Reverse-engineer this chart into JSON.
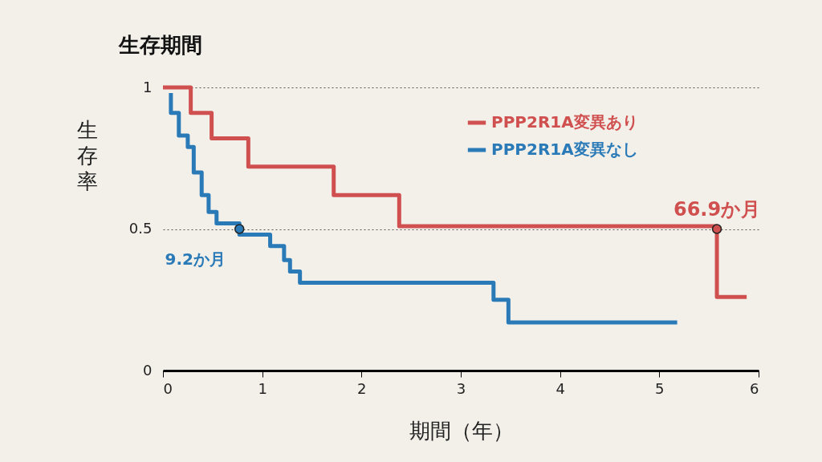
{
  "chart_data": {
    "type": "step",
    "title": "生存期間",
    "xlabel": "期間（年）",
    "ylabel": "生存率",
    "series": [
      {
        "name": "PPP2R1A変異あり",
        "color": "#d05050",
        "x": [
          0,
          0.28,
          0.49,
          0.86,
          1.72,
          2.38,
          5.58,
          5.88
        ],
        "values": [
          1,
          0.91,
          0.82,
          0.72,
          0.62,
          0.51,
          0.26,
          0.26
        ]
      },
      {
        "name": "PPP2R1A変異なし",
        "color": "#2a7ab8",
        "x": [
          0.08,
          0.08,
          0.16,
          0.25,
          0.31,
          0.39,
          0.46,
          0.54,
          0.77,
          1.08,
          1.22,
          1.28,
          1.38,
          3.33,
          3.48,
          5.18
        ],
        "values": [
          0.98,
          0.91,
          0.83,
          0.79,
          0.7,
          0.62,
          0.56,
          0.52,
          0.48,
          0.44,
          0.39,
          0.35,
          0.31,
          0.25,
          0.17,
          0.17
        ]
      }
    ],
    "annotations": [
      {
        "text": "66.9か月",
        "x": 5.58,
        "y": 0.5
      },
      {
        "text": "9.2か月",
        "x": 0.77,
        "y": 0.5
      }
    ],
    "xlim": [
      0,
      6
    ],
    "xticks": [
      0,
      1,
      2,
      3,
      4,
      5,
      6
    ],
    "ylim": [
      0,
      1
    ],
    "yticks": [
      0,
      0.5,
      1
    ],
    "grid": "y",
    "legend": "top right",
    "line_style": "solid",
    "marker": "none"
  }
}
